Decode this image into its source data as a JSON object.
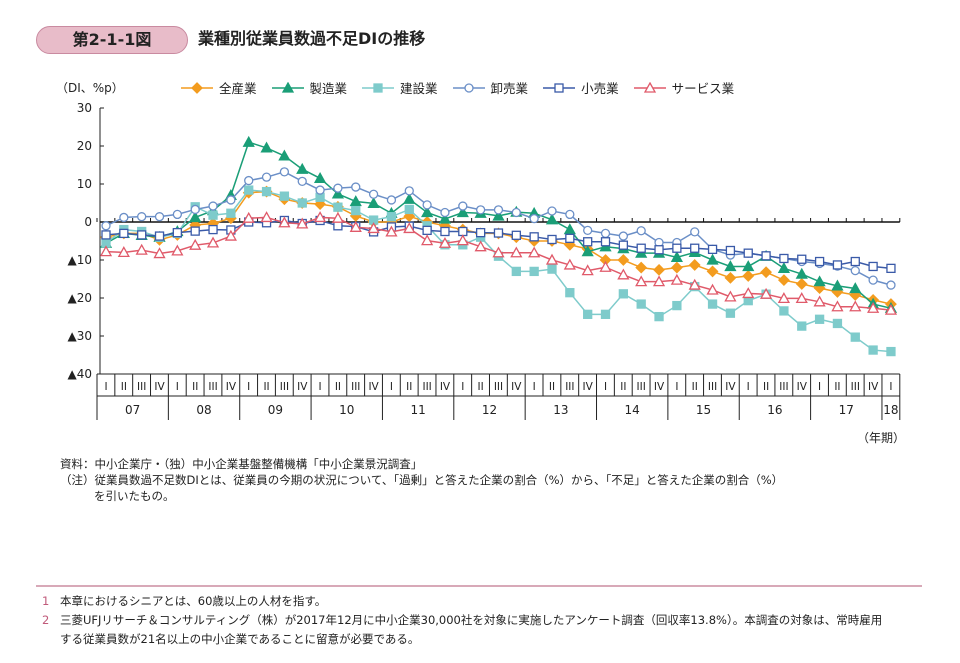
{
  "figure": {
    "number": "第2-1-1図",
    "title": "業種別従業員数過不足DIの推移"
  },
  "chart_data": {
    "type": "line",
    "ylabel": "（DI、%p）",
    "xlabel": "（年期）",
    "ylim": [
      -40,
      30
    ],
    "y_ticks": [
      30,
      20,
      10,
      0,
      -10,
      -20,
      -30,
      -40
    ],
    "y_tick_labels": [
      "30",
      "20",
      "10",
      "0",
      "▲10",
      "▲20",
      "▲30",
      "▲40"
    ],
    "quarter_labels": [
      "I",
      "II",
      "III",
      "IV",
      "I",
      "II",
      "III",
      "IV",
      "I",
      "II",
      "III",
      "IV",
      "I",
      "II",
      "III",
      "IV",
      "I",
      "II",
      "III",
      "IV",
      "I",
      "II",
      "III",
      "IV",
      "I",
      "II",
      "III",
      "IV",
      "I",
      "II",
      "III",
      "IV",
      "I",
      "II",
      "III",
      "IV",
      "I",
      "II",
      "III",
      "IV",
      "I",
      "II",
      "III",
      "IV",
      "I"
    ],
    "year_labels": [
      "07",
      "08",
      "09",
      "10",
      "11",
      "12",
      "13",
      "14",
      "15",
      "16",
      "17",
      "18"
    ],
    "grid": false,
    "legend_position": "top",
    "series": [
      {
        "name": "全産業",
        "color": "#f39c1f",
        "marker": "diamond-filled",
        "values": [
          -4,
          -3,
          -3,
          -4.7,
          -3.4,
          -0.8,
          -0.4,
          1,
          7.7,
          8,
          6,
          5,
          4.7,
          4,
          1.6,
          0,
          0,
          1.5,
          0,
          -1,
          -2,
          -3,
          -3,
          -4,
          -5,
          -5,
          -6,
          -7.1,
          -10,
          -10,
          -12,
          -12.6,
          -12,
          -11.3,
          -13,
          -14.7,
          -14.2,
          -13.2,
          -15.3,
          -16.3,
          -17.4,
          -18.4,
          -19.2,
          -20.5,
          -21.6
        ]
      },
      {
        "name": "製造業",
        "color": "#1a9e77",
        "marker": "triangle-filled",
        "values": [
          -5.6,
          -3,
          -3.5,
          -4,
          -2.5,
          1.2,
          3,
          7,
          21,
          19.5,
          17.4,
          13.9,
          11.5,
          7.4,
          5.4,
          4.9,
          2.3,
          6,
          2.5,
          0.8,
          2.5,
          2.3,
          1.6,
          2.6,
          2.3,
          0.6,
          -2,
          -7.8,
          -6.5,
          -7,
          -8.2,
          -8.2,
          -9.3,
          -8,
          -10,
          -11.7,
          -11.7,
          -9,
          -12.2,
          -13.7,
          -15.7,
          -16.8,
          -17.5,
          -21.6,
          -22.7
        ]
      },
      {
        "name": "建設業",
        "color": "#7ecbcb",
        "marker": "square-filled",
        "values": [
          -5.5,
          -2,
          -2.5,
          -4,
          -3,
          4,
          1.8,
          2.3,
          8.4,
          8,
          6.8,
          5,
          6.5,
          3.9,
          3,
          0.5,
          1.4,
          3.3,
          -1,
          -6,
          -6,
          -4,
          -9,
          -13,
          -13,
          -12.4,
          -18.6,
          -24.3,
          -24.3,
          -18.9,
          -21.6,
          -24.9,
          -22,
          -17,
          -21.6,
          -24,
          -20.7,
          -19,
          -23.4,
          -27.4,
          -25.6,
          -26.7,
          -30.3,
          -33.7,
          -34.1
        ]
      },
      {
        "name": "卸売業",
        "color": "#6b8fc7",
        "marker": "circle-open",
        "values": [
          -1,
          1.2,
          1.4,
          1.4,
          2,
          3.3,
          4.2,
          5.8,
          10.9,
          11.8,
          13.2,
          10.7,
          8.4,
          8.9,
          9.2,
          7.3,
          5.8,
          8.2,
          4.5,
          2.5,
          4.2,
          3.2,
          3.2,
          2.5,
          0.9,
          2.9,
          2,
          -2.2,
          -3,
          -3.7,
          -2.3,
          -5.4,
          -5.4,
          -2.6,
          -7.2,
          -8.7,
          -8.2,
          -8.9,
          -9.6,
          -10.4,
          -10.9,
          -11.6,
          -12.8,
          -15.3,
          -16.6
        ]
      },
      {
        "name": "小売業",
        "color": "#3a5aa8",
        "marker": "square-open",
        "values": [
          -3.4,
          -3,
          -3.4,
          -3.7,
          -2.8,
          -2.4,
          -2,
          -2.1,
          0,
          -0.2,
          0.4,
          -0.4,
          0.4,
          -1,
          -1.2,
          -2.6,
          -1.3,
          -1.1,
          -2.2,
          -2.5,
          -2.5,
          -2.8,
          -2.9,
          -3.5,
          -3.9,
          -4.6,
          -4.3,
          -5.2,
          -5.2,
          -6.1,
          -6.9,
          -7.3,
          -6.9,
          -6.9,
          -7.2,
          -7.5,
          -8.2,
          -8.9,
          -9.6,
          -9.8,
          -10.4,
          -11.3,
          -10.4,
          -11.7,
          -12.2
        ]
      },
      {
        "name": "サービス業",
        "color": "#e05a6a",
        "marker": "triangle-open",
        "values": [
          -7.8,
          -8,
          -7.4,
          -8.3,
          -7.6,
          -6.1,
          -5.5,
          -3.7,
          1,
          1.2,
          -0.2,
          -0.5,
          1.2,
          1,
          -1.4,
          -1.7,
          -2.6,
          -1.7,
          -4.9,
          -5.6,
          -4.9,
          -6.5,
          -8.1,
          -8.1,
          -8.1,
          -10,
          -11.3,
          -12.8,
          -11.9,
          -13.9,
          -15.7,
          -15.7,
          -15.3,
          -16.6,
          -17.9,
          -19.7,
          -18.8,
          -19,
          -20.1,
          -20.1,
          -21,
          -22.3,
          -22.3,
          -22.7,
          -23.2
        ]
      }
    ]
  },
  "notes": {
    "source": "資料：中小企業庁・（独）中小企業基盤整備機構「中小企業景況調査」",
    "note_line1": "（注）従業員数過不足数DIとは、従業員の今期の状況について、「過剰」と答えた企業の割合（%）から、「不足」と答えた企業の割合（%）",
    "note_line2": "を引いたもの。"
  },
  "footnotes": [
    {
      "num": "1",
      "text": "本章におけるシニアとは、60歳以上の人材を指す。"
    },
    {
      "num": "2",
      "text": "三菱UFJリサーチ＆コンサルティング（株）が2017年12月に中小企業30,000社を対象に実施したアンケート調査（回収率13.8%）。本調査の対象は、常時雇用",
      "text2": "する従業員数が21名以上の中小企業であることに留意が必要である。"
    }
  ]
}
